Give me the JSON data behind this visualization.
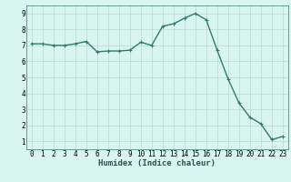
{
  "x": [
    0,
    1,
    2,
    3,
    4,
    5,
    6,
    7,
    8,
    9,
    10,
    11,
    12,
    13,
    14,
    15,
    16,
    17,
    18,
    19,
    20,
    21,
    22,
    23
  ],
  "y": [
    7.1,
    7.1,
    7.0,
    7.0,
    7.1,
    7.25,
    6.6,
    6.65,
    6.65,
    6.7,
    7.2,
    7.0,
    8.2,
    8.35,
    8.7,
    9.0,
    8.6,
    6.7,
    4.9,
    3.4,
    2.5,
    2.1,
    1.1,
    1.3
  ],
  "line_color": "#2e7d6e",
  "marker": "+",
  "marker_size": 3,
  "bg_color": "#d9f5f0",
  "grid_color": "#b8d8d0",
  "xlabel": "Humidex (Indice chaleur)",
  "xlabel_fontsize": 6.5,
  "xlim": [
    -0.5,
    23.5
  ],
  "ylim": [
    0.5,
    9.5
  ],
  "xticks": [
    0,
    1,
    2,
    3,
    4,
    5,
    6,
    7,
    8,
    9,
    10,
    11,
    12,
    13,
    14,
    15,
    16,
    17,
    18,
    19,
    20,
    21,
    22,
    23
  ],
  "yticks": [
    1,
    2,
    3,
    4,
    5,
    6,
    7,
    8,
    9
  ],
  "tick_fontsize": 5.5,
  "linewidth": 1.0
}
